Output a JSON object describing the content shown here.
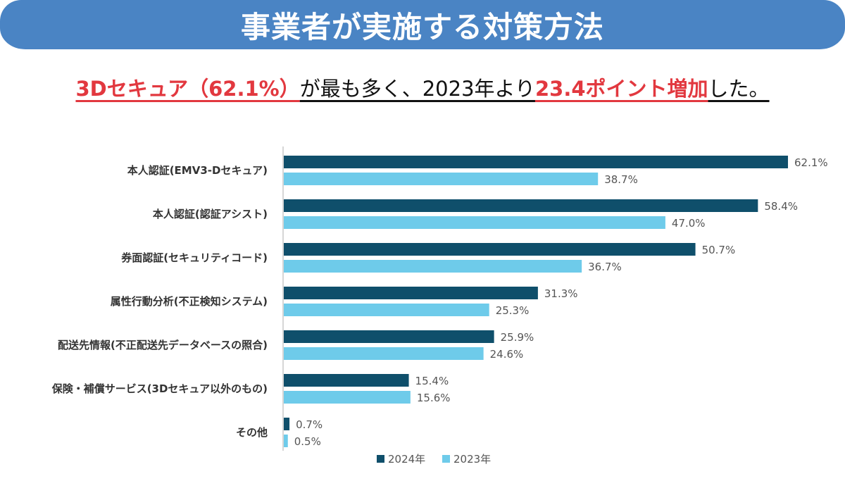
{
  "header": {
    "title": "事業者が実施する対策方法"
  },
  "subtitle": {
    "segments": [
      {
        "text": "3Dセキュア（62.1%）",
        "style": "highlight"
      },
      {
        "text": "が最も多く、2023年より",
        "style": "plain"
      },
      {
        "text": "23.4ポイント増加",
        "style": "highlight"
      },
      {
        "text": "した。",
        "style": "plain"
      }
    ]
  },
  "colors": {
    "banner": "#4a84c4",
    "highlight_text": "#e2383f",
    "series_2024": "#0f4f6b",
    "series_2023": "#6ecbea"
  },
  "chart_data": {
    "type": "bar",
    "orientation": "horizontal",
    "title": "",
    "xlabel": "",
    "ylabel": "",
    "xlim": [
      0,
      65
    ],
    "grid": false,
    "legend_position": "bottom-center",
    "categories": [
      "本人認証(EMV3-Dセキュア)",
      "本人認証(認証アシスト)",
      "券面認証(セキュリティコード)",
      "属性行動分析(不正検知システム)",
      "配送先情報(不正配送先データベースの照合)",
      "保険・補償サービス(3Dセキュア以外のもの)",
      "その他"
    ],
    "series": [
      {
        "name": "2024年",
        "color": "#0f4f6b",
        "values": [
          62.1,
          58.4,
          50.7,
          31.3,
          25.9,
          15.4,
          0.7
        ],
        "labels": [
          "62.1%",
          "58.4%",
          "50.7%",
          "31.3%",
          "25.9%",
          "15.4%",
          "0.7%"
        ]
      },
      {
        "name": "2023年",
        "color": "#6ecbea",
        "values": [
          38.7,
          47.0,
          36.7,
          25.3,
          24.6,
          15.6,
          0.5
        ],
        "labels": [
          "38.7%",
          "47.0%",
          "36.7%",
          "25.3%",
          "24.6%",
          "15.6%",
          "0.5%"
        ]
      }
    ]
  }
}
